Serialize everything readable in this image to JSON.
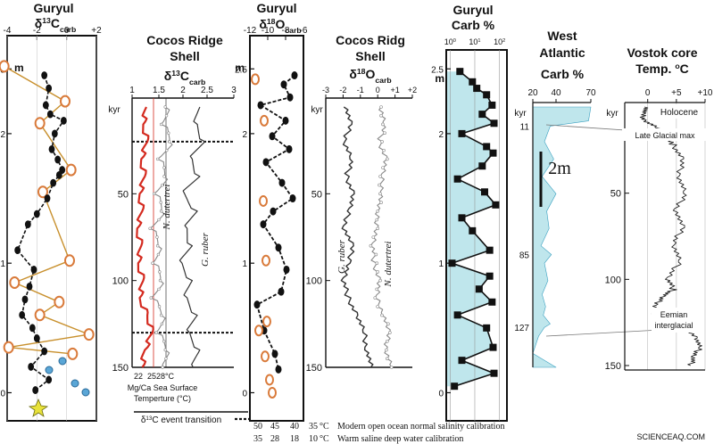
{
  "colors": {
    "axis": "#111111",
    "red": "#d42a1f",
    "orange": "#d97a3a",
    "tan": "#c8902d",
    "cyan": "#bfe6ec",
    "cyan_line": "#3aa0c0",
    "grey": "#777777",
    "blue_glyph": "#5aa6d6",
    "yellow_glyph": "#e8e23a"
  },
  "watermark": "SCIENCEAQ.COM",
  "bottom_legend": {
    "event_label": "δ13C event transition",
    "row1_values": [
      "50",
      "45",
      "40",
      "35"
    ],
    "row1_unit": "°C",
    "row1_text": "Modern open ocean normal salinity calibration",
    "row2_values": [
      "35",
      "28",
      "18",
      "10"
    ],
    "row2_unit": "°C",
    "row2_text": "Warm saline deep water calibration"
  },
  "chart_data": [
    {
      "id": "p1",
      "type": "line",
      "title": "Guryul",
      "xlabel": "δ13Ccarb",
      "ylabel": "m",
      "x_ticks": [
        "-4",
        "-2",
        "0",
        "+2"
      ],
      "xlim": [
        -4,
        2
      ],
      "y_ticks": [
        "2.5",
        "2",
        "1",
        "0"
      ],
      "ylim": [
        -0.1,
        2.55
      ],
      "series": [
        {
          "style": "black",
          "x": [
            -1.5,
            -1.2,
            -1.4,
            -1.1,
            -0.2,
            -0.8,
            -1.0,
            -0.6,
            -0.3,
            -0.5,
            -0.9,
            -1.3,
            -2.0,
            -2.6,
            -3.3,
            -2.2,
            -2.5,
            -2.8,
            -3.0,
            -2.3,
            -2.0,
            -1.5,
            -2.4,
            -1.2,
            -2.1
          ],
          "y": [
            2.45,
            2.35,
            2.22,
            2.15,
            2.1,
            2.0,
            1.88,
            1.8,
            1.72,
            1.68,
            1.62,
            1.5,
            1.38,
            1.3,
            1.1,
            0.95,
            0.82,
            0.72,
            0.6,
            0.5,
            0.42,
            0.32,
            0.2,
            0.1,
            0.02
          ]
        },
        {
          "style": "orange",
          "x": [
            -4.2,
            -0.1,
            -1.8,
            0.3,
            -1.6,
            0.2,
            -3.5,
            -0.5,
            -1.8,
            1.5,
            -3.9,
            0.4
          ],
          "y": [
            2.52,
            2.25,
            2.08,
            1.72,
            1.55,
            1.02,
            0.85,
            0.7,
            0.6,
            0.45,
            0.35,
            0.3
          ]
        }
      ]
    },
    {
      "id": "p2",
      "type": "line",
      "title": "Cocos Ridge Shell",
      "xlabel": "δ13Ccarb",
      "ylabel": "kyr",
      "x_ticks": [
        "1",
        "1.5",
        "2",
        "2.5",
        "3"
      ],
      "xlim": [
        1,
        3
      ],
      "y_ticks": [
        "50",
        "100",
        "150"
      ],
      "ylim": [
        0,
        150
      ],
      "reference_lines": [
        20,
        130
      ],
      "series": [
        {
          "name": "N. dutertrei",
          "style": "grey",
          "x": [
            1.7,
            1.62,
            1.78,
            1.55,
            1.68,
            1.48,
            1.62,
            1.4,
            1.55,
            1.45,
            1.6,
            1.42,
            1.62,
            1.52,
            1.7,
            1.6
          ],
          "y": [
            0,
            10,
            20,
            30,
            40,
            50,
            60,
            70,
            80,
            90,
            100,
            110,
            120,
            130,
            140,
            150
          ]
        },
        {
          "name": "G. ruber",
          "style": "dark",
          "x": [
            2.3,
            2.25,
            2.4,
            2.15,
            2.3,
            2.0,
            2.25,
            2.05,
            2.15,
            1.95,
            2.15,
            2.05,
            2.25,
            2.1,
            2.3,
            2.2
          ],
          "y": [
            0,
            10,
            20,
            30,
            40,
            50,
            60,
            70,
            80,
            90,
            100,
            110,
            120,
            130,
            140,
            150
          ]
        },
        {
          "name": "Mg/Ca Sea Surface Temperature",
          "style": "red",
          "x": [
            1.28,
            1.22,
            1.3,
            1.18,
            1.25,
            1.15,
            1.2,
            1.1,
            1.18,
            1.12,
            1.22,
            1.15,
            1.3,
            1.4,
            1.25,
            1.2
          ],
          "y": [
            0,
            10,
            20,
            30,
            40,
            50,
            60,
            70,
            80,
            90,
            100,
            110,
            120,
            130,
            140,
            150
          ]
        }
      ],
      "bottom_scale": {
        "ticks": [
          "22",
          "25",
          "28°C"
        ],
        "label_line1": "Mg/Ca Sea Surface",
        "label_line2": "Temperture (°C)"
      }
    },
    {
      "id": "p3",
      "type": "line",
      "title": "Guryul",
      "xlabel": "δ18Ocarb",
      "ylabel": "m",
      "x_ticks": [
        "-12",
        "-10",
        "-8",
        "-6"
      ],
      "xlim": [
        -12,
        -6
      ],
      "y_ticks": [
        "2.5",
        "2",
        "1",
        "0"
      ],
      "ylim": [
        -0.1,
        2.55
      ],
      "series": [
        {
          "style": "black",
          "x": [
            -7.0,
            -8.2,
            -7.5,
            -10.8,
            -8.0,
            -9.5,
            -7.6,
            -10.2,
            -8.4,
            -7.2,
            -9.4,
            -10.5,
            -8.8,
            -7.9,
            -8.5,
            -11.2,
            -10.4,
            -9.2,
            -8.8
          ],
          "y": [
            2.45,
            2.38,
            2.28,
            2.22,
            2.1,
            1.98,
            1.88,
            1.78,
            1.62,
            1.5,
            1.4,
            1.3,
            1.12,
            0.95,
            0.78,
            0.68,
            0.48,
            0.3,
            0.18
          ]
        },
        {
          "style": "orange",
          "x": [
            -11.4,
            -10.4,
            -10.5,
            -10.2,
            -10.1,
            -11.0,
            -10.3,
            -9.8,
            -9.5
          ],
          "y": [
            2.42,
            2.1,
            1.48,
            1.02,
            0.55,
            0.48,
            0.28,
            0.1,
            0.0
          ]
        }
      ]
    },
    {
      "id": "p4",
      "type": "line",
      "title": "Cocos Ridg Shell",
      "xlabel": "δ18Ocarb",
      "ylabel": "kyr",
      "x_ticks": [
        "-3",
        "-2",
        "-1",
        "0",
        "+1",
        "+2"
      ],
      "xlim": [
        -3,
        2
      ],
      "y_ticks": [
        "50",
        "100",
        "150"
      ],
      "ylim": [
        0,
        150
      ],
      "series": [
        {
          "name": "G. ruber",
          "style": "dark",
          "x": [
            -1.8,
            -1.6,
            -1.9,
            -1.5,
            -1.8,
            -1.4,
            -1.7,
            -1.9,
            -1.5,
            -1.6,
            -2.0,
            -1.7,
            -1.2,
            -0.8,
            -0.6,
            -0.4
          ],
          "y": [
            0,
            10,
            20,
            30,
            40,
            50,
            60,
            70,
            80,
            90,
            100,
            110,
            120,
            130,
            140,
            150
          ]
        },
        {
          "name": "N. dutertrei",
          "style": "grey",
          "x": [
            0.2,
            0.4,
            0.1,
            0.5,
            0.2,
            0.3,
            -0.1,
            0.0,
            -0.3,
            -0.2,
            0.1,
            -0.1,
            0.4,
            0.6,
            0.5,
            0.8
          ],
          "y": [
            0,
            10,
            20,
            30,
            40,
            50,
            60,
            70,
            80,
            90,
            100,
            110,
            120,
            130,
            140,
            150
          ]
        }
      ]
    },
    {
      "id": "p5",
      "type": "area",
      "title": "Guryul",
      "xlabel": "Carb %",
      "ylabel": "m",
      "x_ticks": [
        "10^0",
        "10^1",
        "10^2"
      ],
      "x_log": true,
      "xlim": [
        0.7,
        200
      ],
      "y_ticks": [
        "2.5",
        "2",
        "1",
        "0"
      ],
      "ylim": [
        -0.1,
        2.55
      ],
      "series": [
        {
          "style": "black-squares",
          "x": [
            2.5,
            8,
            12,
            30,
            50,
            20,
            60,
            3,
            30,
            55,
            20,
            2,
            25,
            70,
            3,
            8,
            40,
            1.2,
            40,
            15,
            50,
            2,
            30,
            55,
            3,
            60,
            1.5
          ],
          "y": [
            2.48,
            2.4,
            2.35,
            2.3,
            2.22,
            2.15,
            2.08,
            2.0,
            1.9,
            1.85,
            1.75,
            1.65,
            1.55,
            1.45,
            1.35,
            1.25,
            1.1,
            1.0,
            0.9,
            0.8,
            0.7,
            0.6,
            0.5,
            0.35,
            0.25,
            0.15,
            0.05
          ]
        }
      ]
    },
    {
      "id": "p6",
      "type": "area",
      "title": "West Atlantic",
      "xlabel": "Carb %",
      "ylabel": "kyr",
      "x_ticks": [
        "20",
        "40",
        "70"
      ],
      "xlim": [
        20,
        70
      ],
      "y_markers": [
        "11",
        "85",
        "127"
      ],
      "scale_bar_label": "2m",
      "series": [
        {
          "style": "cyan",
          "x": [
            70,
            68,
            35,
            30,
            38,
            28,
            40,
            32,
            34,
            27,
            36,
            30,
            33,
            28,
            31,
            29,
            35,
            30,
            25,
            22,
            20,
            40
          ],
          "y": [
            0,
            8,
            11,
            20,
            30,
            40,
            50,
            60,
            70,
            80,
            85,
            90,
            100,
            108,
            115,
            120,
            125,
            127,
            132,
            138,
            142,
            150
          ]
        }
      ]
    },
    {
      "id": "p7",
      "type": "line",
      "title": "Vostok core Temp. °C",
      "xlabel": "",
      "ylabel": "kyr",
      "x_ticks": [
        "0",
        "+5",
        "+10"
      ],
      "xlim": [
        -4,
        10
      ],
      "y_ticks": [
        "50",
        "100",
        "150"
      ],
      "ylim": [
        0,
        150
      ],
      "annotations": [
        "Holocene",
        "Late Glacial max",
        "Eemian interglacial"
      ],
      "series": [
        {
          "style": "black",
          "x": [
            0.0,
            -1.0,
            -0.5,
            1.5,
            3.0,
            4.5,
            6.0,
            5.5,
            6.5,
            5.0,
            6.0,
            4.5,
            5.5,
            3.5,
            4.5,
            2.5,
            1.5,
            1.0,
            4.0,
            7.0,
            8.5,
            9.0,
            8.0,
            7.5
          ],
          "y": [
            0,
            4,
            8,
            12,
            18,
            22,
            30,
            40,
            50,
            60,
            70,
            80,
            90,
            100,
            106,
            110,
            115,
            120,
            124,
            128,
            134,
            140,
            145,
            150
          ]
        }
      ]
    }
  ]
}
